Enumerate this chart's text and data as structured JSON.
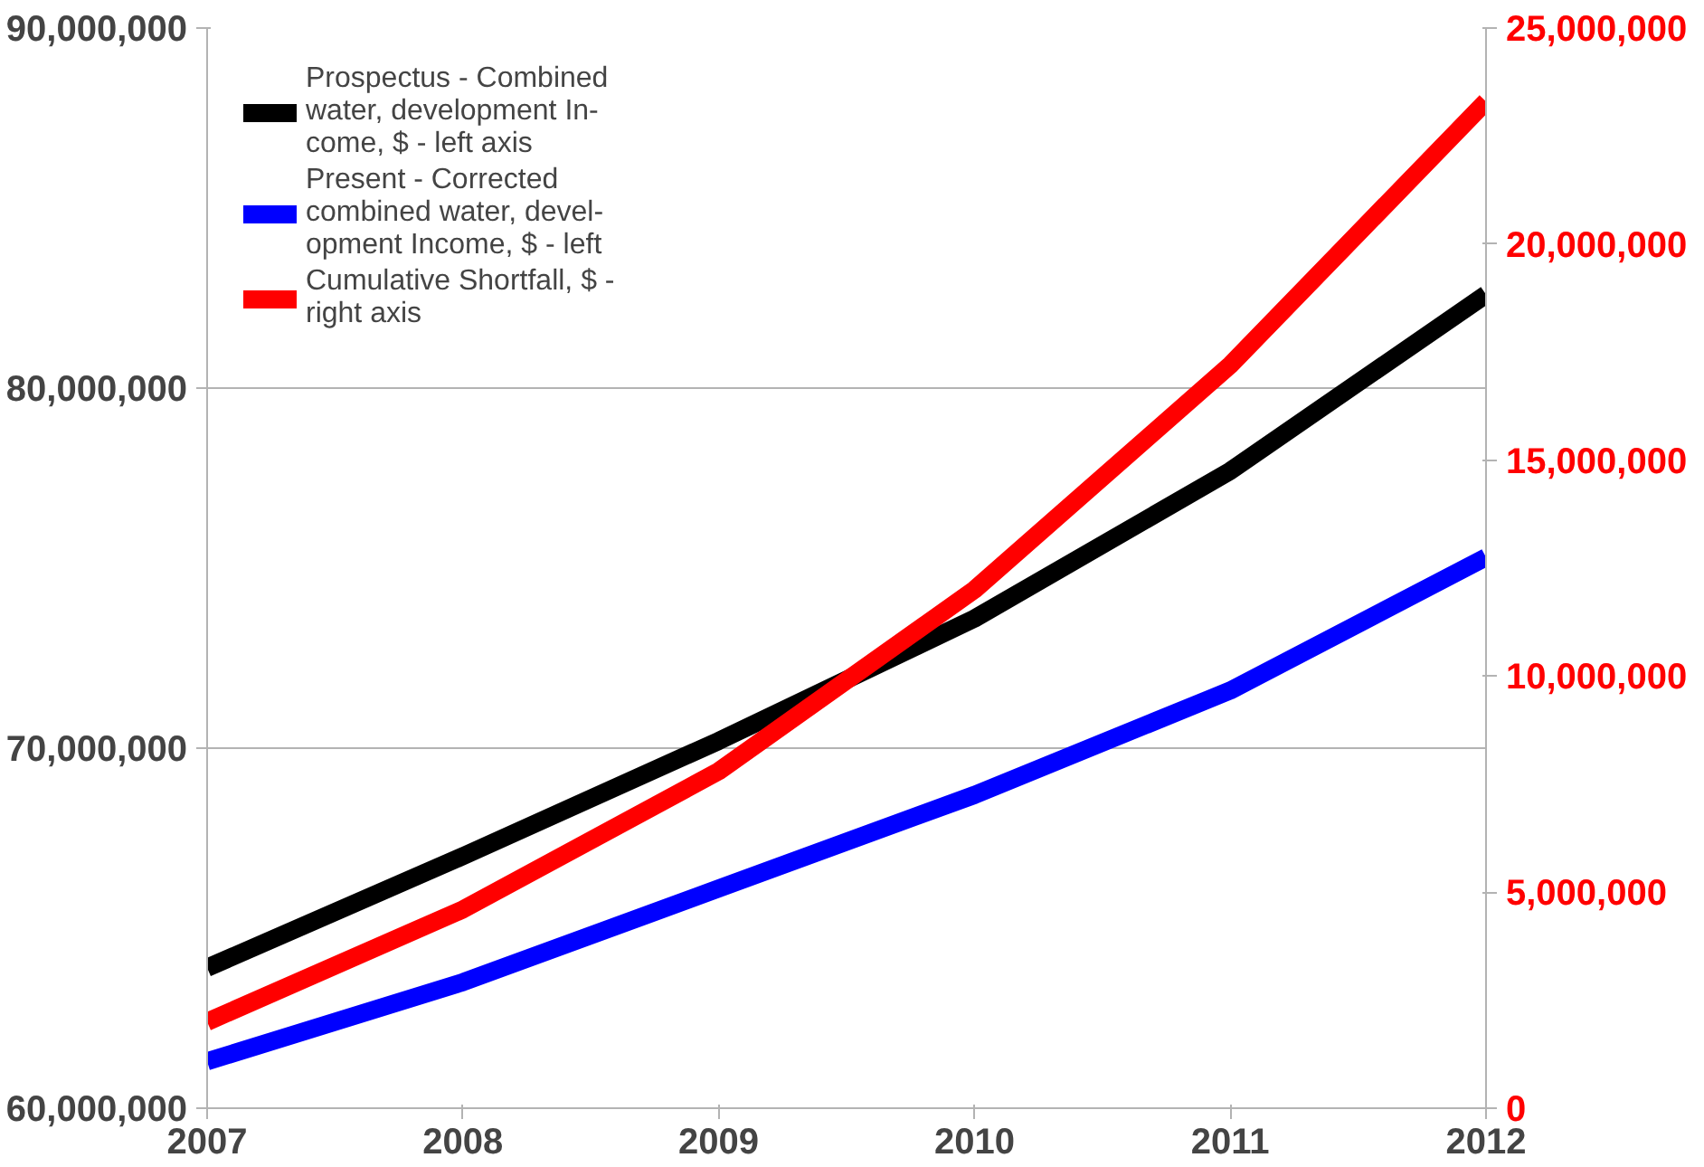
{
  "chart_data": {
    "type": "line",
    "x": [
      2007,
      2008,
      2009,
      2010,
      2011,
      2012
    ],
    "xlim": [
      2007,
      2012
    ],
    "xticks": [
      2007,
      2008,
      2009,
      2010,
      2011,
      2012
    ],
    "ylim": [
      60000000,
      90000000
    ],
    "yticks": [
      {
        "value": 60000000,
        "label": "60,000,000"
      },
      {
        "value": 70000000,
        "label": "70,000,000"
      },
      {
        "value": 80000000,
        "label": "80,000,000"
      },
      {
        "value": 90000000,
        "label": "90,000,000"
      }
    ],
    "y2lim": [
      0,
      25000000
    ],
    "y2ticks": [
      0,
      {
        "value": 5000000,
        "label": "5,000,000"
      },
      {
        "value": 10000000,
        "label": "10,000,000"
      },
      {
        "value": 15000000,
        "label": "15,000,000"
      },
      {
        "value": 20000000,
        "label": "20,000,000"
      },
      {
        "value": 25000000,
        "label": "25,000,000"
      }
    ],
    "grid": "y",
    "legend": "top left",
    "marker": "none",
    "line_style": "solid",
    "series": [
      {
        "name": "Prospectus - Combined\nwater, development In-\ncome, $ - left axis",
        "color": "#000000",
        "values": [
          63900000,
          67000000,
          70200000,
          73600000,
          77700000,
          82600000
        ]
      },
      {
        "name": "Present - Corrected\ncombined water, devel-\nopment Income, $ - left",
        "color": "#0000ff",
        "values": [
          61300000,
          63500000,
          66100000,
          68700000,
          71600000,
          75300000
        ]
      },
      {
        "name": "Cumulative Shortfall, $ -\nright axis",
        "color": "#ff0000",
        "axis": "y2",
        "values": [
          2000000,
          4600000,
          7800000,
          12000000,
          17200000,
          23300000
        ]
      }
    ]
  }
}
